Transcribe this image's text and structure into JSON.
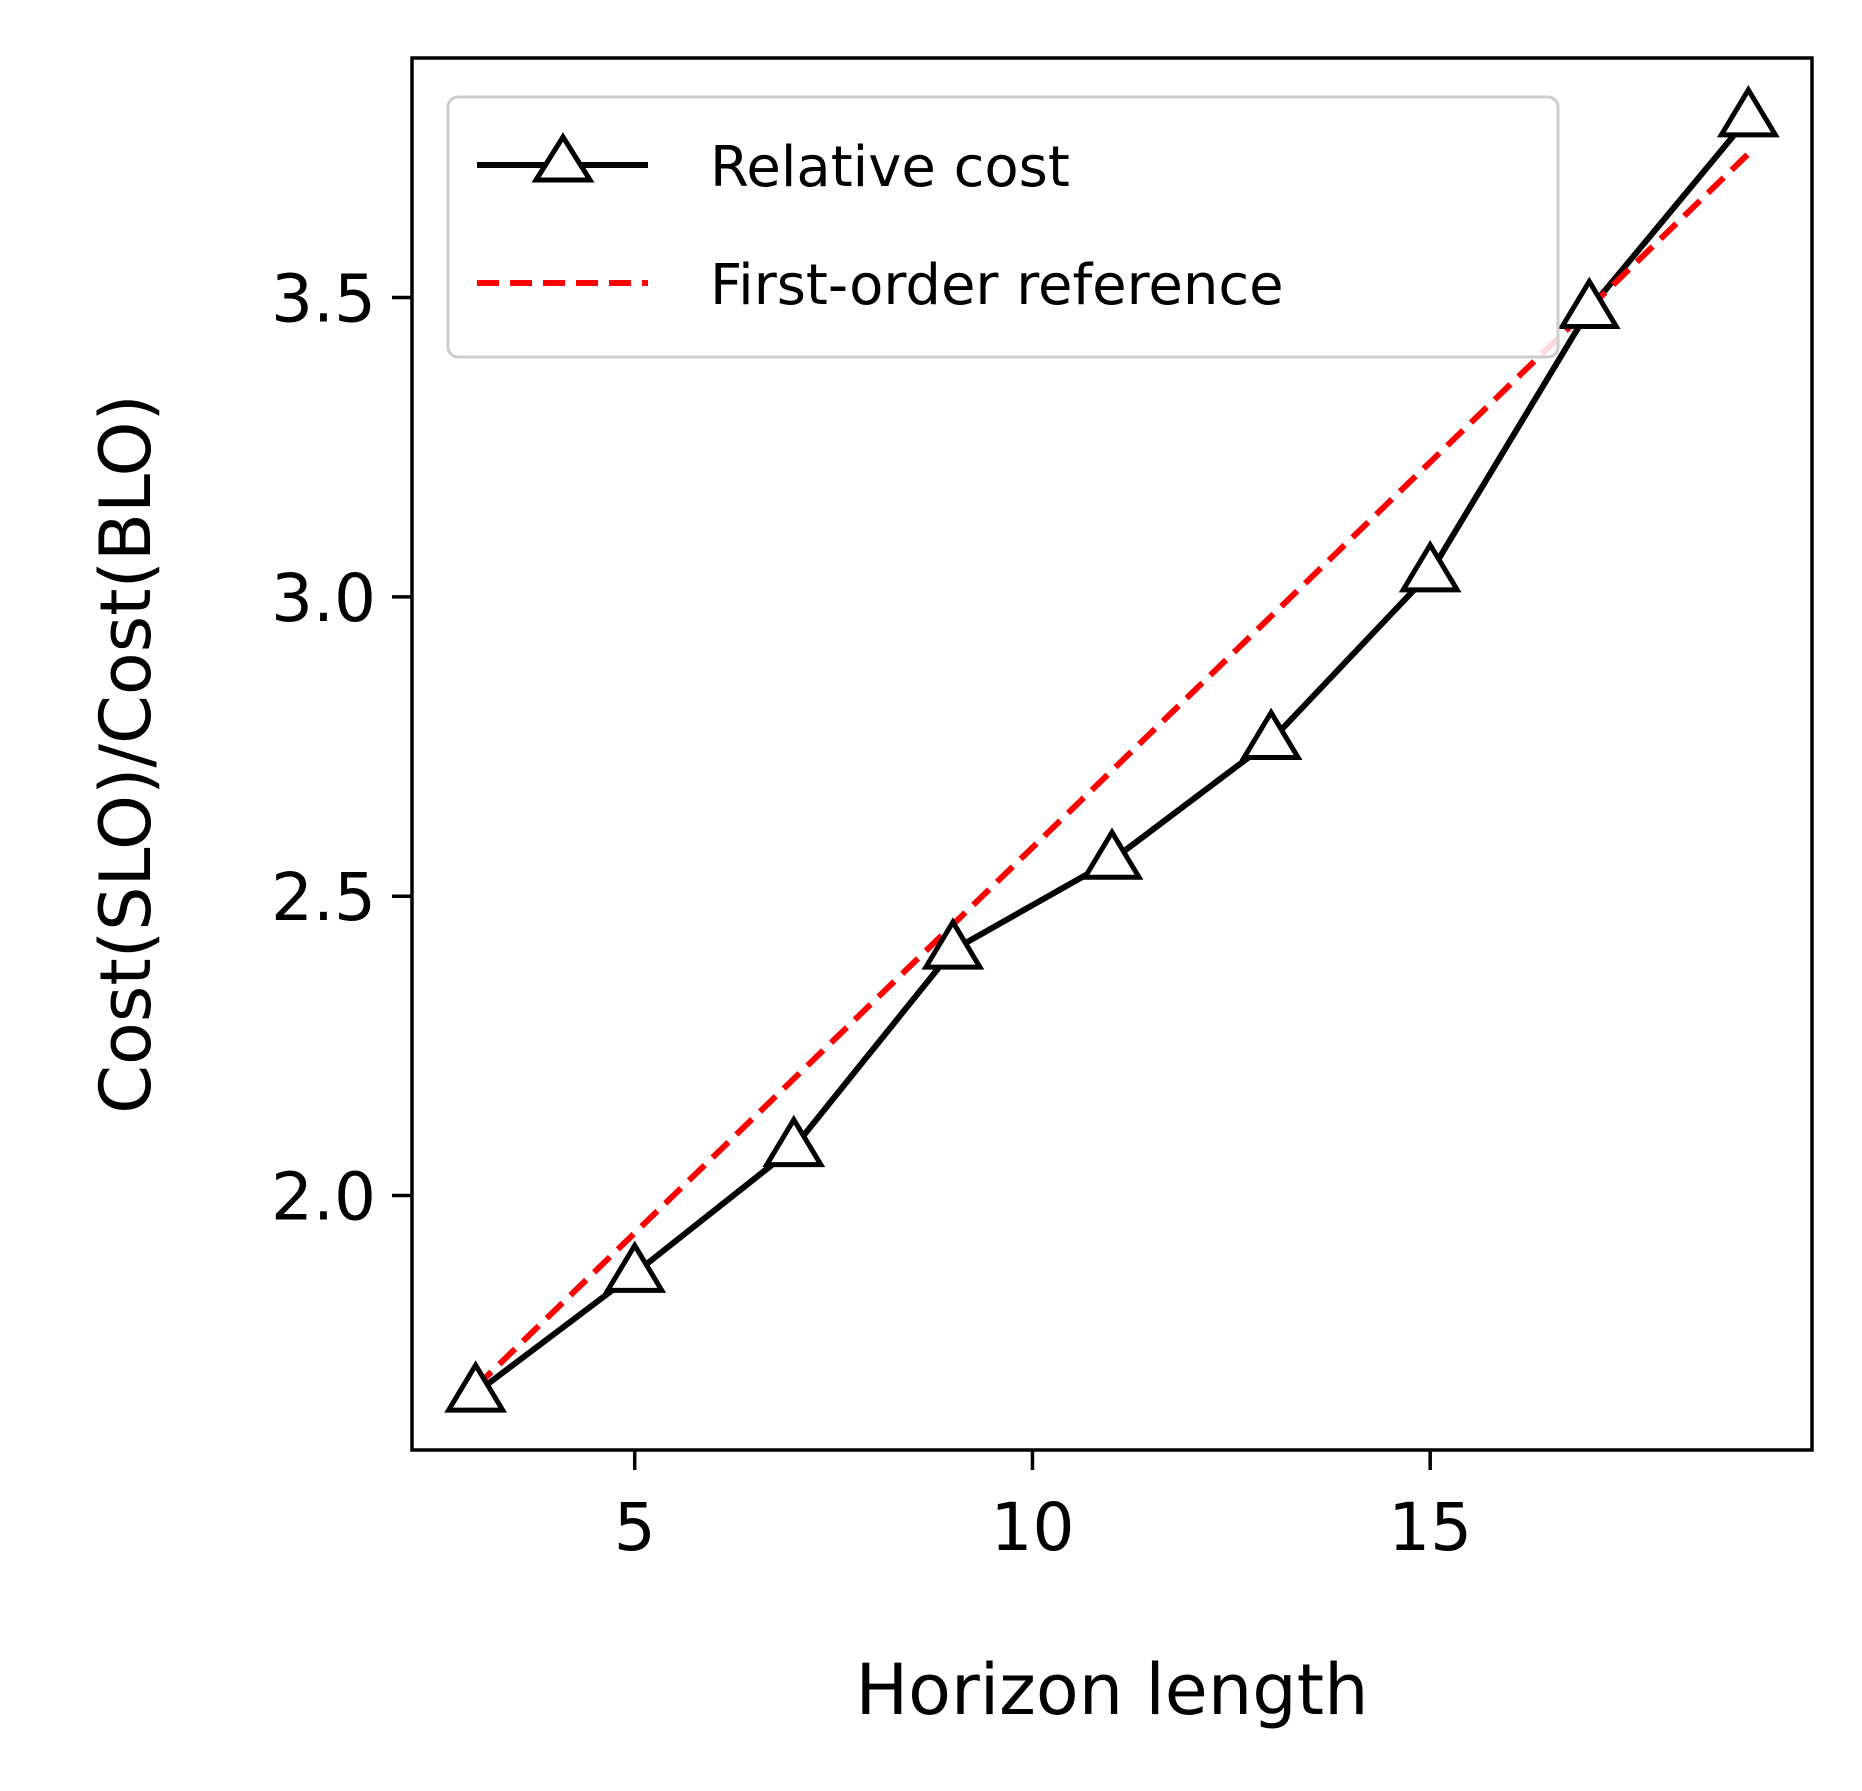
{
  "chart_data": {
    "type": "line",
    "xlabel": "Horizon length",
    "ylabel": "Cost(SLO)/Cost(BLO)",
    "xlim": [
      2.2,
      19.8
    ],
    "ylim": [
      1.575,
      3.9
    ],
    "x_ticks": [
      5,
      10,
      15
    ],
    "y_ticks": [
      2.0,
      2.5,
      3.0,
      3.5
    ],
    "x_tick_labels": [
      "5",
      "10",
      "15"
    ],
    "y_tick_labels": [
      "2.0",
      "2.5",
      "3.0",
      "3.5"
    ],
    "grid": false,
    "legend_position": "top-left",
    "series": [
      {
        "name": "Relative cost",
        "style": "solid",
        "marker": "triangle-open",
        "color": "#000000",
        "x": [
          3,
          5,
          7,
          9,
          11,
          13,
          15,
          17,
          19
        ],
        "y": [
          1.67,
          1.87,
          2.08,
          2.41,
          2.56,
          2.76,
          3.04,
          3.48,
          3.8
        ]
      },
      {
        "name": "First-order reference",
        "style": "dashed",
        "color": "#ff0000",
        "x": [
          3,
          19
        ],
        "y": [
          1.68,
          3.74
        ]
      }
    ]
  }
}
